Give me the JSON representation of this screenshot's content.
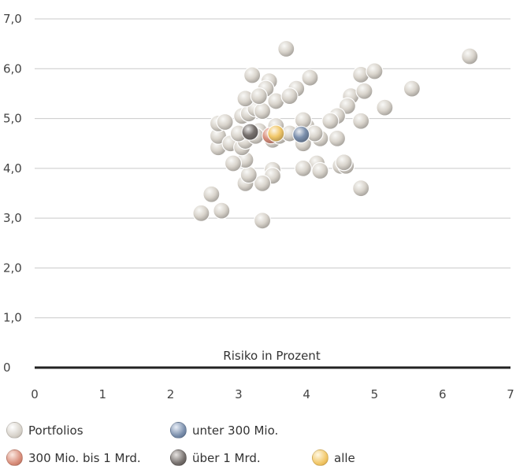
{
  "chart_data": {
    "type": "scatter",
    "xlabel": "Risiko in Prozent",
    "ylabel": "",
    "xlim": [
      0,
      7
    ],
    "ylim": [
      0,
      7
    ],
    "x_ticks": [
      "0",
      "1",
      "2",
      "3",
      "4",
      "5",
      "6",
      "7"
    ],
    "y_ticks": [
      "0",
      "1,0",
      "2,0",
      "3,0",
      "4,0",
      "5,0",
      "6,0",
      "7,0"
    ],
    "grid": "horizontal",
    "series": [
      {
        "name": "Portfolios",
        "color": "#d9d4cc",
        "points": [
          [
            2.45,
            3.1
          ],
          [
            2.6,
            3.48
          ],
          [
            2.75,
            3.15
          ],
          [
            3.35,
            2.95
          ],
          [
            3.7,
            6.4
          ],
          [
            6.4,
            6.25
          ],
          [
            3.2,
            5.87
          ],
          [
            3.45,
            5.75
          ],
          [
            3.4,
            5.6
          ],
          [
            3.85,
            5.6
          ],
          [
            4.05,
            5.82
          ],
          [
            4.8,
            5.88
          ],
          [
            5.0,
            5.95
          ],
          [
            5.55,
            5.6
          ],
          [
            5.15,
            5.22
          ],
          [
            4.65,
            5.45
          ],
          [
            4.85,
            5.55
          ],
          [
            4.6,
            5.25
          ],
          [
            4.45,
            5.05
          ],
          [
            4.35,
            4.95
          ],
          [
            4.8,
            4.95
          ],
          [
            4.45,
            4.6
          ],
          [
            4.2,
            4.6
          ],
          [
            4.15,
            4.1
          ],
          [
            4.2,
            3.95
          ],
          [
            4.5,
            4.05
          ],
          [
            4.58,
            4.05
          ],
          [
            4.55,
            4.12
          ],
          [
            4.8,
            3.6
          ],
          [
            3.95,
            4.0
          ],
          [
            3.5,
            3.97
          ],
          [
            3.5,
            3.85
          ],
          [
            3.35,
            3.7
          ],
          [
            3.1,
            3.7
          ],
          [
            3.15,
            3.87
          ],
          [
            3.1,
            4.17
          ],
          [
            2.92,
            4.1
          ],
          [
            2.7,
            4.42
          ],
          [
            2.7,
            4.65
          ],
          [
            2.88,
            4.5
          ],
          [
            3.05,
            4.42
          ],
          [
            3.1,
            4.55
          ],
          [
            3.0,
            4.7
          ],
          [
            2.7,
            4.9
          ],
          [
            2.8,
            4.93
          ],
          [
            3.05,
            5.05
          ],
          [
            3.15,
            5.1
          ],
          [
            3.25,
            5.2
          ],
          [
            3.35,
            5.15
          ],
          [
            3.1,
            5.4
          ],
          [
            3.3,
            5.45
          ],
          [
            3.55,
            5.35
          ],
          [
            3.75,
            5.45
          ],
          [
            3.5,
            4.57
          ],
          [
            3.6,
            4.65
          ],
          [
            3.55,
            4.85
          ],
          [
            3.95,
            4.5
          ],
          [
            3.95,
            4.77
          ],
          [
            4.0,
            4.85
          ],
          [
            3.95,
            4.97
          ],
          [
            3.3,
            4.75
          ],
          [
            3.25,
            4.65
          ],
          [
            3.75,
            4.7
          ],
          [
            4.12,
            4.7
          ]
        ]
      },
      {
        "name": "unter 300 Mio.",
        "color": "#7b8fac",
        "points": [
          [
            3.92,
            4.68
          ]
        ]
      },
      {
        "name": "300 Mio. bis 1 Mrd.",
        "color": "#d98f7c",
        "points": [
          [
            3.47,
            4.66
          ]
        ]
      },
      {
        "name": "über 1 Mrd.",
        "color": "#77716e",
        "points": [
          [
            3.17,
            4.73
          ]
        ]
      },
      {
        "name": "alle",
        "color": "#f2c86a",
        "points": [
          [
            3.55,
            4.7
          ]
        ]
      }
    ],
    "legend": "bottom"
  }
}
